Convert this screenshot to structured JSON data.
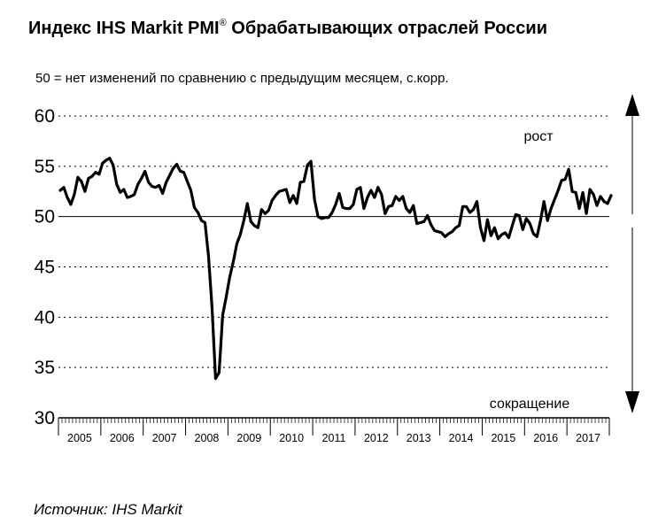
{
  "header": {
    "title_main": "Индекс IHS Markit PMI",
    "title_sup": "®",
    "title_rest": " Обрабатывающих отраслей России",
    "subtitle": "50 = нет изменений по сравнению с предыдущим месяцем, с.корр."
  },
  "footer": {
    "source": "Источник: IHS Markit"
  },
  "chart_data": {
    "type": "line",
    "title": "Индекс IHS Markit PMI® Обрабатывающих отраслей России",
    "subtitle": "50 = нет изменений по сравнению с предыдущим месяцем, с.корр.",
    "xlabel": "",
    "ylabel": "",
    "ylim": [
      30,
      60
    ],
    "yticks": [
      30,
      35,
      40,
      45,
      50,
      55,
      60
    ],
    "xlim": [
      "2005-01",
      "2017-09"
    ],
    "xtick_labels": [
      "2005",
      "2006",
      "2007",
      "2008",
      "2009",
      "2010",
      "2011",
      "2012",
      "2013",
      "2014",
      "2015",
      "2016",
      "2017"
    ],
    "grid": "horizontal dotted",
    "reference_line": 50,
    "annotations": {
      "up": "рост",
      "down": "сокращение"
    },
    "series": [
      {
        "start": "2005-01",
        "frequency": "monthly",
        "color": "#000000",
        "values": [
          52.6,
          52.9,
          51.9,
          51.2,
          52.2,
          53.9,
          53.5,
          52.5,
          53.8,
          54.0,
          54.4,
          54.2,
          55.3,
          55.6,
          55.8,
          55.1,
          53.2,
          52.4,
          52.7,
          51.9,
          52.0,
          52.2,
          53.2,
          53.8,
          54.5,
          53.4,
          53.0,
          52.9,
          53.1,
          52.3,
          53.4,
          54.1,
          54.8,
          55.2,
          54.5,
          54.4,
          53.5,
          52.6,
          50.9,
          50.4,
          49.6,
          49.4,
          46.0,
          41.0,
          33.9,
          34.5,
          40.2,
          42.0,
          44.0,
          45.5,
          47.3,
          48.2,
          49.6,
          51.3,
          49.5,
          49.1,
          48.9,
          50.7,
          50.3,
          50.6,
          51.6,
          52.1,
          52.5,
          52.6,
          52.7,
          51.4,
          52.1,
          51.3,
          53.4,
          53.5,
          55.1,
          55.5,
          51.7,
          50.0,
          49.8,
          49.9,
          49.9,
          50.4,
          51.2,
          52.3,
          50.9,
          50.8,
          50.8,
          51.2,
          52.7,
          52.9,
          50.8,
          51.9,
          52.6,
          51.9,
          52.9,
          52.2,
          50.3,
          51.0,
          51.1,
          52.0,
          51.6,
          52.0,
          50.8,
          50.4,
          51.1,
          49.3,
          49.4,
          49.5,
          50.1,
          49.2,
          48.6,
          48.5,
          48.4,
          48.0,
          48.3,
          48.5,
          48.9,
          49.1,
          51.0,
          51.0,
          50.4,
          50.7,
          51.5,
          48.9,
          47.6,
          49.7,
          48.1,
          48.9,
          47.8,
          48.2,
          48.4,
          47.9,
          49.1,
          50.2,
          50.1,
          48.7,
          49.8,
          49.3,
          48.3,
          48.0,
          49.6,
          51.5,
          49.6,
          50.8,
          51.7,
          52.6,
          53.6,
          53.7,
          54.7,
          52.5,
          52.4,
          50.8,
          52.4,
          50.3,
          52.7,
          52.2,
          51.1,
          52.0,
          51.5,
          51.3,
          52.1
        ]
      }
    ]
  }
}
